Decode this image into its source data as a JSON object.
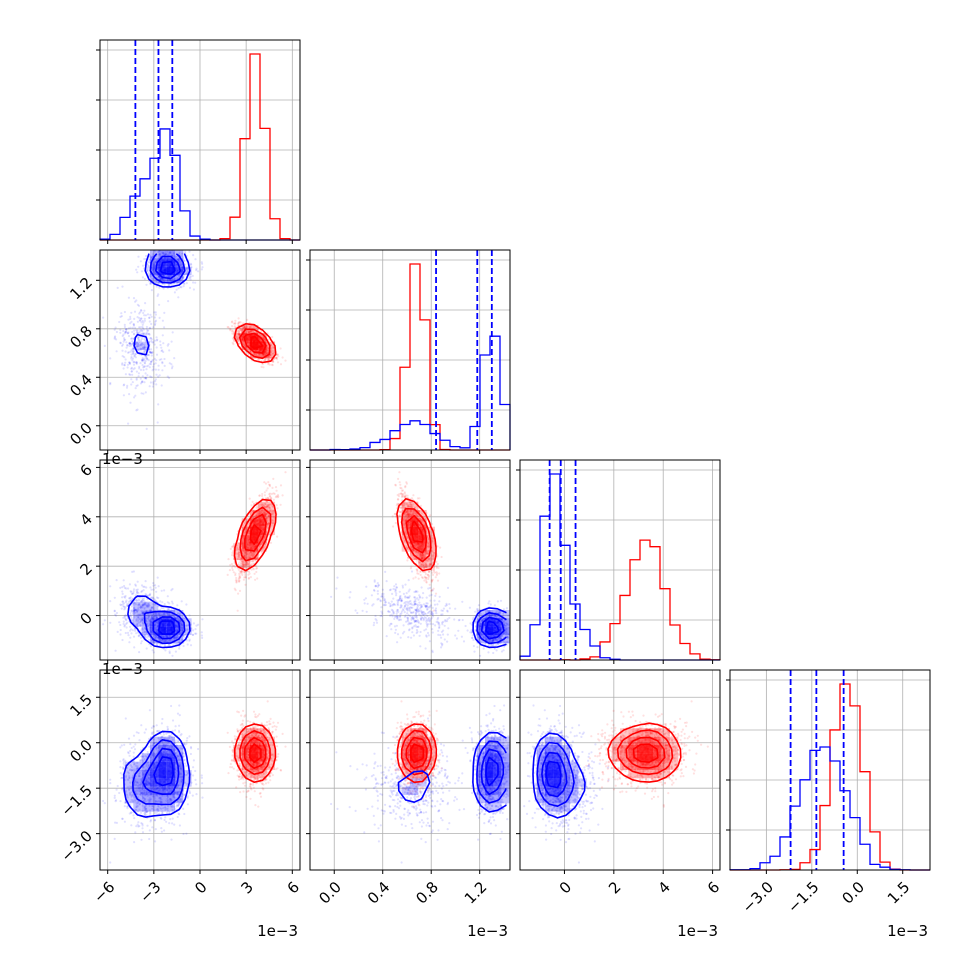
{
  "colors": {
    "series_a": "#ff0000",
    "series_b": "#0000ff",
    "grid": "#b0b0b0"
  },
  "chart_data": {
    "type": "corner",
    "grid": true,
    "params": [
      {
        "range": [
          -6.5,
          6.5
        ],
        "ticks": [
          -6,
          -3,
          0,
          3,
          6
        ],
        "tick_labels": [
          "−6",
          "−3",
          "0",
          "3",
          "6"
        ],
        "scale_label": "1e−3"
      },
      {
        "range": [
          -0.2,
          1.45
        ],
        "ticks": [
          0.0,
          0.4,
          0.8,
          1.2
        ],
        "tick_labels": [
          "0.0",
          "0.4",
          "0.8",
          "1.2"
        ],
        "scale_label": "1e−3"
      },
      {
        "range": [
          -1.8,
          6.3
        ],
        "ticks": [
          0,
          2,
          4,
          6
        ],
        "tick_labels": [
          "0",
          "2",
          "4",
          "6"
        ],
        "scale_label": "1e−3"
      },
      {
        "range": [
          -4.2,
          2.4
        ],
        "ticks": [
          -3.0,
          -1.5,
          0.0,
          1.5
        ],
        "tick_labels": [
          "−3.0",
          "−1.5",
          "0.0",
          "1.5"
        ],
        "scale_label": "1e−3"
      }
    ],
    "series": [
      {
        "color": "#ff0000",
        "clusters": [
          {
            "weight": 1.0,
            "mean": [
              3.6,
              0.68,
              3.3,
              -0.35
            ],
            "sd": [
              0.6,
              0.07,
              0.8,
              0.5
            ],
            "corr": [
              [
                0,
                1,
                -0.7
              ],
              [
                0,
                2,
                0.75
              ],
              [
                1,
                2,
                -0.7
              ]
            ]
          }
        ]
      },
      {
        "color": "#0000ff",
        "quantiles": [
          [
            -4.2,
            -2.7,
            -1.8
          ],
          [
            0.84,
            1.18,
            1.3
          ],
          [
            -0.6,
            -0.15,
            0.45
          ],
          [
            -2.2,
            -1.35,
            -0.45
          ]
        ],
        "clusters": [
          {
            "weight": 0.65,
            "mean": [
              -2.1,
              1.3,
              -0.5,
              -1.0
            ],
            "sd": [
              0.7,
              0.07,
              0.35,
              0.7
            ],
            "corr": []
          },
          {
            "weight": 0.35,
            "mean": [
              -3.8,
              0.65,
              0.2,
              -1.4
            ],
            "sd": [
              0.8,
              0.17,
              0.6,
              0.75
            ],
            "corr": [
              [
                1,
                2,
                -0.4
              ]
            ]
          }
        ]
      }
    ]
  }
}
